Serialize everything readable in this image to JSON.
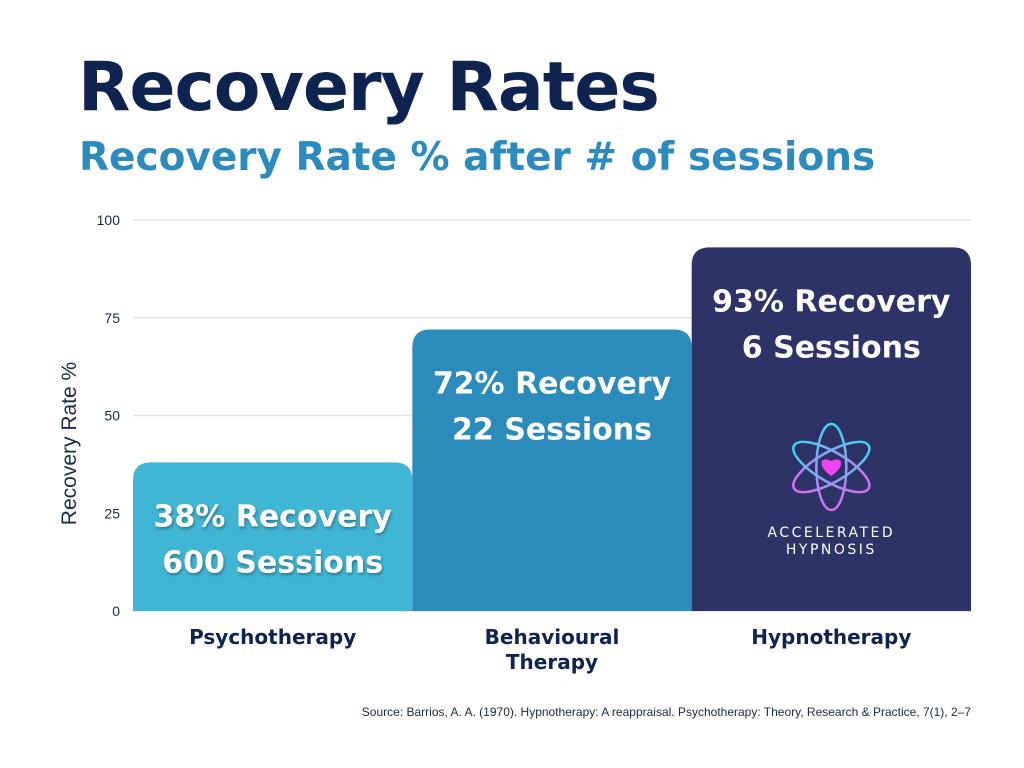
{
  "chart_data": {
    "type": "bar",
    "title": "Recovery Rates",
    "subtitle": "Recovery Rate % after # of sessions",
    "xlabel": "",
    "ylabel": "Recovery Rate %",
    "ylim": [
      0,
      100
    ],
    "yticks": [
      0,
      25,
      50,
      75,
      100
    ],
    "grid": true,
    "categories": [
      "Psychotherapy",
      "Behavioural Therapy",
      "Hypnotherapy"
    ],
    "category_lines": [
      [
        "Psychotherapy"
      ],
      [
        "Behavioural",
        "Therapy"
      ],
      [
        "Hypnotherapy"
      ]
    ],
    "values": [
      38,
      72,
      93
    ],
    "sessions": [
      600,
      22,
      6
    ],
    "data_labels": [
      [
        "38% Recovery",
        "600 Sessions"
      ],
      [
        "72% Recovery",
        "22 Sessions"
      ],
      [
        "93% Recovery",
        "6 Sessions"
      ]
    ],
    "colors": [
      "#41b6d4",
      "#2b8bbb",
      "#2e3367"
    ],
    "source": "Source: Barrios, A. A. (1970). Hypnotherapy: A reappraisal. Psychotherapy: Theory, Research & Practice, 7(1), 2–7"
  },
  "logo": {
    "line1": "ACCELERATED",
    "line2": "HYPNOSIS"
  }
}
